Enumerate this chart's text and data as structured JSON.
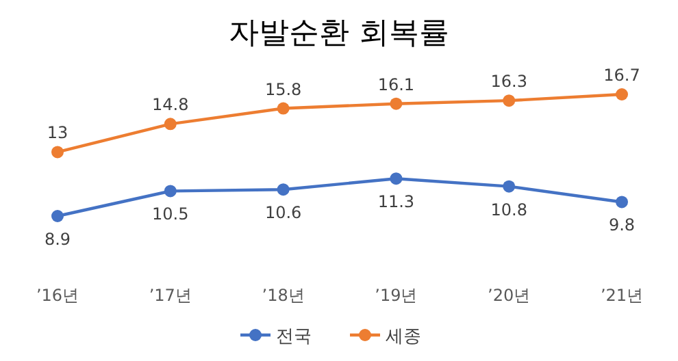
{
  "chart_data": {
    "type": "line",
    "title": "자발순환 회복률",
    "categories": [
      "’16년",
      "’17년",
      "’18년",
      "’19년",
      "’20년",
      "’21년"
    ],
    "series": [
      {
        "name": "전국",
        "color": "#4472c4",
        "values": [
          8.9,
          10.5,
          10.6,
          11.3,
          10.8,
          9.8
        ]
      },
      {
        "name": "세종",
        "color": "#ed7d31",
        "values": [
          13,
          14.8,
          15.8,
          16.1,
          16.3,
          16.7
        ]
      }
    ],
    "data_labels": true,
    "marker": "circle",
    "legend": "bottom",
    "grid": false
  }
}
